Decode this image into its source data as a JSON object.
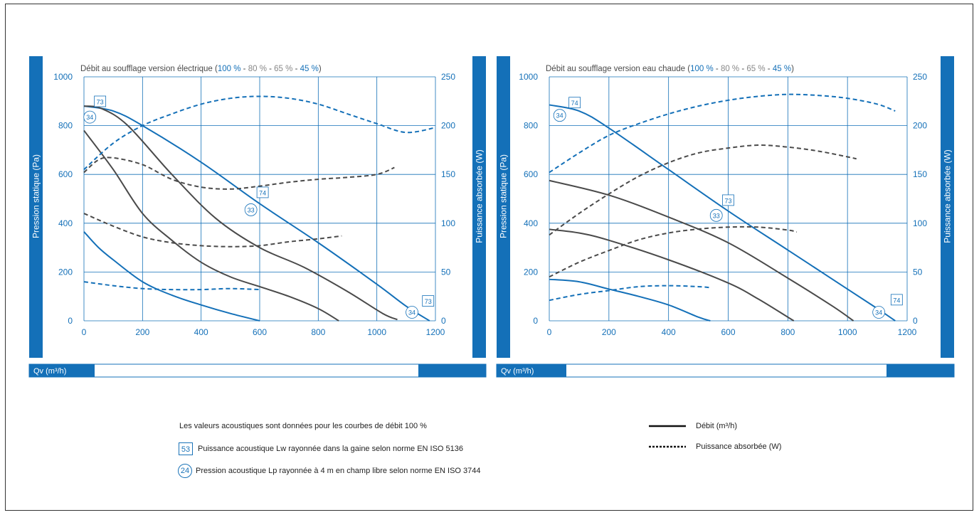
{
  "colors": {
    "blue": "#1470b8",
    "dark": "#4a4a4a",
    "grid": "#1470b8",
    "gray_text": "#888888"
  },
  "chart_data": [
    {
      "type": "line",
      "title_prefix": "Débit au soufflage version électrique (",
      "title_parts": [
        {
          "text": "100 %",
          "color": "blue"
        },
        {
          "text": " - ",
          "color": "dark"
        },
        {
          "text": "80 %",
          "color": "gray"
        },
        {
          "text": " - ",
          "color": "dark"
        },
        {
          "text": "65 %",
          "color": "gray"
        },
        {
          "text": " - ",
          "color": "dark"
        },
        {
          "text": "45 %",
          "color": "blue"
        }
      ],
      "title_suffix": ")",
      "xlabel": "Qv (m³/h)",
      "ylabel": "Pression statique (Pa)",
      "y2label": "Puissance absorbée (W)",
      "xlim": [
        0,
        1200
      ],
      "ylim": [
        0,
        1000
      ],
      "y2lim": [
        0,
        250
      ],
      "xticks": [
        0,
        200,
        400,
        600,
        800,
        1000,
        1200
      ],
      "yticks": [
        0,
        200,
        400,
        600,
        800,
        1000
      ],
      "y2ticks": [
        0,
        50,
        100,
        150,
        200,
        250
      ],
      "series": [
        {
          "color": "blue",
          "dash": false,
          "axis": "y",
          "points": [
            [
              0,
              880
            ],
            [
              100,
              860
            ],
            [
              200,
              800
            ],
            [
              400,
              650
            ],
            [
              600,
              480
            ],
            [
              800,
              320
            ],
            [
              1000,
              150
            ],
            [
              1100,
              60
            ],
            [
              1180,
              0
            ]
          ]
        },
        {
          "color": "dark",
          "dash": false,
          "axis": "y",
          "points": [
            [
              0,
              880
            ],
            [
              60,
              870
            ],
            [
              150,
              800
            ],
            [
              300,
              600
            ],
            [
              450,
              420
            ],
            [
              600,
              300
            ],
            [
              750,
              220
            ],
            [
              900,
              120
            ],
            [
              1020,
              30
            ],
            [
              1070,
              5
            ]
          ]
        },
        {
          "color": "dark",
          "dash": false,
          "axis": "y",
          "points": [
            [
              0,
              780
            ],
            [
              100,
              620
            ],
            [
              200,
              440
            ],
            [
              300,
              330
            ],
            [
              400,
              240
            ],
            [
              500,
              180
            ],
            [
              600,
              140
            ],
            [
              700,
              100
            ],
            [
              800,
              50
            ],
            [
              870,
              0
            ]
          ]
        },
        {
          "color": "blue",
          "dash": false,
          "axis": "y",
          "points": [
            [
              0,
              365
            ],
            [
              50,
              300
            ],
            [
              100,
              250
            ],
            [
              200,
              160
            ],
            [
              300,
              105
            ],
            [
              400,
              65
            ],
            [
              500,
              30
            ],
            [
              600,
              0
            ]
          ]
        },
        {
          "color": "blue",
          "dash": true,
          "axis": "y2",
          "points": [
            [
              0,
              155
            ],
            [
              100,
              182
            ],
            [
              200,
              200
            ],
            [
              300,
              212
            ],
            [
              400,
              222
            ],
            [
              500,
              228
            ],
            [
              600,
              230
            ],
            [
              700,
              228
            ],
            [
              800,
              222
            ],
            [
              900,
              212
            ],
            [
              1000,
              202
            ],
            [
              1100,
              193
            ],
            [
              1200,
              198
            ]
          ]
        },
        {
          "color": "dark",
          "dash": true,
          "axis": "y2",
          "points": [
            [
              0,
              152
            ],
            [
              50,
              165
            ],
            [
              100,
              167
            ],
            [
              200,
              160
            ],
            [
              300,
              145
            ],
            [
              400,
              137
            ],
            [
              500,
              135
            ],
            [
              600,
              138
            ],
            [
              700,
              142
            ],
            [
              800,
              145
            ],
            [
              900,
              147
            ],
            [
              1000,
              150
            ],
            [
              1060,
              157
            ]
          ]
        },
        {
          "color": "dark",
          "dash": true,
          "axis": "y2",
          "points": [
            [
              0,
              110
            ],
            [
              100,
              97
            ],
            [
              200,
              86
            ],
            [
              300,
              80
            ],
            [
              400,
              77
            ],
            [
              500,
              76
            ],
            [
              600,
              77
            ],
            [
              700,
              81
            ],
            [
              800,
              84
            ],
            [
              880,
              87
            ]
          ]
        },
        {
          "color": "blue",
          "dash": true,
          "axis": "y2",
          "points": [
            [
              0,
              40
            ],
            [
              100,
              36
            ],
            [
              200,
              33
            ],
            [
              300,
              32
            ],
            [
              400,
              32
            ],
            [
              500,
              33
            ],
            [
              600,
              32
            ]
          ]
        }
      ],
      "annotations": [
        {
          "x": 55,
          "y": 898,
          "label": "73",
          "shape": "square"
        },
        {
          "x": 20,
          "y": 835,
          "label": "34",
          "shape": "circle"
        },
        {
          "x": 610,
          "y": 525,
          "label": "74",
          "shape": "square"
        },
        {
          "x": 570,
          "y": 455,
          "label": "33",
          "shape": "circle"
        },
        {
          "x": 1175,
          "y": 80,
          "label": "73",
          "shape": "square"
        },
        {
          "x": 1120,
          "y": 35,
          "label": "34",
          "shape": "circle"
        }
      ]
    },
    {
      "type": "line",
      "title_prefix": "Débit au soufflage version eau chaude (",
      "title_parts": [
        {
          "text": "100 %",
          "color": "blue"
        },
        {
          "text": " - ",
          "color": "dark"
        },
        {
          "text": "80 %",
          "color": "gray"
        },
        {
          "text": " - ",
          "color": "dark"
        },
        {
          "text": "65 %",
          "color": "gray"
        },
        {
          "text": " - ",
          "color": "dark"
        },
        {
          "text": "45 %",
          "color": "blue"
        }
      ],
      "title_suffix": ")",
      "xlabel": "Qv (m³/h)",
      "ylabel": "Pression statique (Pa)",
      "y2label": "Puissance absorbée (W)",
      "xlim": [
        0,
        1200
      ],
      "ylim": [
        0,
        1000
      ],
      "y2lim": [
        0,
        250
      ],
      "xticks": [
        0,
        200,
        400,
        600,
        800,
        1000,
        1200
      ],
      "yticks": [
        0,
        200,
        400,
        600,
        800,
        1000
      ],
      "y2ticks": [
        0,
        50,
        100,
        150,
        200,
        250
      ],
      "series": [
        {
          "color": "blue",
          "dash": false,
          "axis": "y",
          "points": [
            [
              0,
              885
            ],
            [
              100,
              860
            ],
            [
              200,
              790
            ],
            [
              400,
              620
            ],
            [
              600,
              450
            ],
            [
              800,
              290
            ],
            [
              1000,
              130
            ],
            [
              1100,
              50
            ],
            [
              1160,
              0
            ]
          ]
        },
        {
          "color": "dark",
          "dash": false,
          "axis": "y",
          "points": [
            [
              0,
              575
            ],
            [
              200,
              515
            ],
            [
              400,
              425
            ],
            [
              600,
              320
            ],
            [
              800,
              175
            ],
            [
              950,
              60
            ],
            [
              1020,
              0
            ]
          ]
        },
        {
          "color": "dark",
          "dash": false,
          "axis": "y",
          "points": [
            [
              0,
              375
            ],
            [
              100,
              360
            ],
            [
              200,
              330
            ],
            [
              400,
              250
            ],
            [
              600,
              155
            ],
            [
              700,
              90
            ],
            [
              800,
              15
            ],
            [
              820,
              0
            ]
          ]
        },
        {
          "color": "blue",
          "dash": false,
          "axis": "y",
          "points": [
            [
              0,
              170
            ],
            [
              100,
              160
            ],
            [
              200,
              130
            ],
            [
              300,
              100
            ],
            [
              400,
              65
            ],
            [
              500,
              15
            ],
            [
              540,
              0
            ]
          ]
        },
        {
          "color": "blue",
          "dash": true,
          "axis": "y2",
          "points": [
            [
              0,
              152
            ],
            [
              100,
              172
            ],
            [
              200,
              190
            ],
            [
              300,
              202
            ],
            [
              400,
              212
            ],
            [
              500,
              220
            ],
            [
              600,
              226
            ],
            [
              700,
              230
            ],
            [
              800,
              232
            ],
            [
              900,
              231
            ],
            [
              1000,
              228
            ],
            [
              1100,
              222
            ],
            [
              1160,
              215
            ]
          ]
        },
        {
          "color": "dark",
          "dash": true,
          "axis": "y2",
          "points": [
            [
              0,
              88
            ],
            [
              100,
              110
            ],
            [
              200,
              130
            ],
            [
              300,
              148
            ],
            [
              400,
              162
            ],
            [
              500,
              172
            ],
            [
              600,
              177
            ],
            [
              700,
              180
            ],
            [
              800,
              178
            ],
            [
              900,
              174
            ],
            [
              1000,
              168
            ],
            [
              1030,
              166
            ]
          ]
        },
        {
          "color": "dark",
          "dash": true,
          "axis": "y2",
          "points": [
            [
              0,
              45
            ],
            [
              100,
              60
            ],
            [
              200,
              72
            ],
            [
              300,
              83
            ],
            [
              400,
              90
            ],
            [
              500,
              94
            ],
            [
              600,
              96
            ],
            [
              700,
              96
            ],
            [
              800,
              93
            ],
            [
              830,
              91
            ]
          ]
        },
        {
          "color": "blue",
          "dash": true,
          "axis": "y2",
          "points": [
            [
              0,
              21
            ],
            [
              100,
              27
            ],
            [
              200,
              31
            ],
            [
              300,
              35
            ],
            [
              400,
              36
            ],
            [
              500,
              35
            ],
            [
              540,
              34
            ]
          ]
        }
      ],
      "annotations": [
        {
          "x": 85,
          "y": 893,
          "label": "74",
          "shape": "square"
        },
        {
          "x": 35,
          "y": 842,
          "label": "34",
          "shape": "circle"
        },
        {
          "x": 600,
          "y": 493,
          "label": "73",
          "shape": "square"
        },
        {
          "x": 560,
          "y": 432,
          "label": "33",
          "shape": "circle"
        },
        {
          "x": 1165,
          "y": 85,
          "label": "74",
          "shape": "square"
        },
        {
          "x": 1105,
          "y": 35,
          "label": "34",
          "shape": "circle"
        }
      ]
    }
  ],
  "legend": {
    "intro": "Les valeurs acoustiques sont données pour les courbes de débit 100 %",
    "lw_badge": "53",
    "lw_text": "Puissance acoustique Lw rayonnée dans la gaine selon norme EN ISO 5136",
    "lp_badge": "24",
    "lp_text": "Pression acoustique Lp rayonnée à 4 m en champ libre selon norme EN ISO 3744",
    "solid_label": "Débit (m³/h)",
    "dashed_label": "Puissance absorbée (W)"
  }
}
